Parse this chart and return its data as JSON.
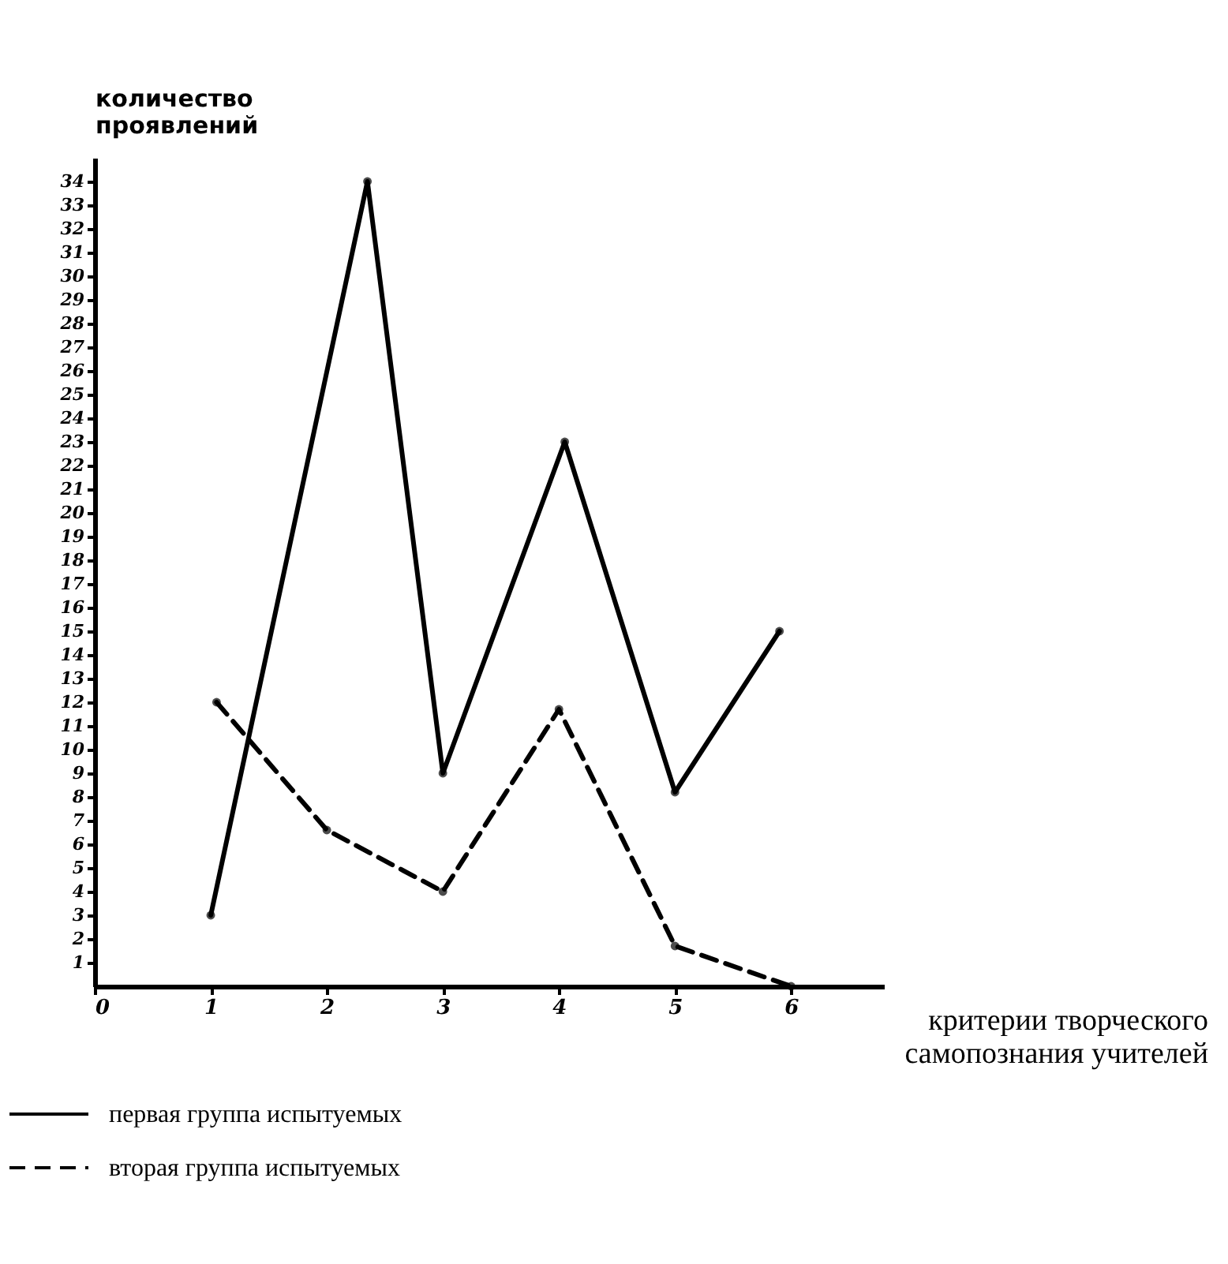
{
  "chart_data": {
    "type": "line",
    "xlabel": "критерии творческого\nсамопознания учителей",
    "ylabel": "количество\nпроявлений",
    "xlim": [
      0,
      6.8
    ],
    "xticks": [
      0,
      1,
      2,
      3,
      4,
      5,
      6
    ],
    "ylim": [
      0,
      35
    ],
    "yticks": [
      1,
      2,
      3,
      4,
      5,
      6,
      7,
      8,
      9,
      10,
      11,
      12,
      13,
      14,
      15,
      16,
      17,
      18,
      19,
      20,
      21,
      22,
      23,
      24,
      25,
      26,
      27,
      28,
      29,
      30,
      31,
      32,
      33,
      34
    ],
    "series": [
      {
        "name": "первая группа испытуемых",
        "color": "#000000",
        "line_style": "solid",
        "x": [
          1,
          2.35,
          3,
          4.05,
          5,
          5.9
        ],
        "values": [
          3,
          34,
          9,
          23,
          8.2,
          15
        ]
      },
      {
        "name": "вторая группа испытуемых",
        "color": "#000000",
        "line_style": "dashed",
        "x": [
          1.05,
          2,
          3,
          4,
          5,
          6
        ],
        "values": [
          12,
          6.6,
          4,
          11.7,
          1.7,
          0
        ]
      }
    ],
    "marker": "circle",
    "grid": false,
    "legend": "bottom left"
  }
}
